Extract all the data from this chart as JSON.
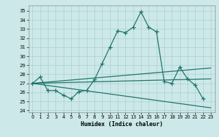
{
  "xlabel": "Humidex (Indice chaleur)",
  "bg_color": "#cce8e8",
  "line_color": "#1a7068",
  "grid_color": "#aacfcf",
  "xlim": [
    -0.5,
    23.5
  ],
  "ylim": [
    23.8,
    35.6
  ],
  "yticks": [
    24,
    25,
    26,
    27,
    28,
    29,
    30,
    31,
    32,
    33,
    34,
    35
  ],
  "xticks": [
    0,
    1,
    2,
    3,
    4,
    5,
    6,
    7,
    8,
    9,
    10,
    11,
    12,
    13,
    14,
    15,
    16,
    17,
    18,
    19,
    20,
    21,
    22,
    23
  ],
  "main_x": [
    0,
    1,
    2,
    3,
    4,
    5,
    6,
    7,
    8,
    9,
    10,
    11,
    12,
    13,
    14,
    15,
    16,
    17,
    18,
    19,
    20,
    21,
    22
  ],
  "main_y": [
    27.0,
    27.7,
    26.2,
    26.2,
    25.7,
    25.3,
    26.1,
    26.2,
    27.4,
    29.2,
    31.0,
    32.8,
    32.6,
    33.2,
    34.9,
    33.2,
    32.7,
    27.2,
    27.0,
    28.8,
    27.5,
    26.8,
    25.3
  ],
  "line2_x": [
    0,
    23
  ],
  "line2_y": [
    27.0,
    28.7
  ],
  "line3_x": [
    0,
    23
  ],
  "line3_y": [
    27.0,
    27.5
  ],
  "line4_x": [
    0,
    23
  ],
  "line4_y": [
    27.0,
    24.3
  ]
}
